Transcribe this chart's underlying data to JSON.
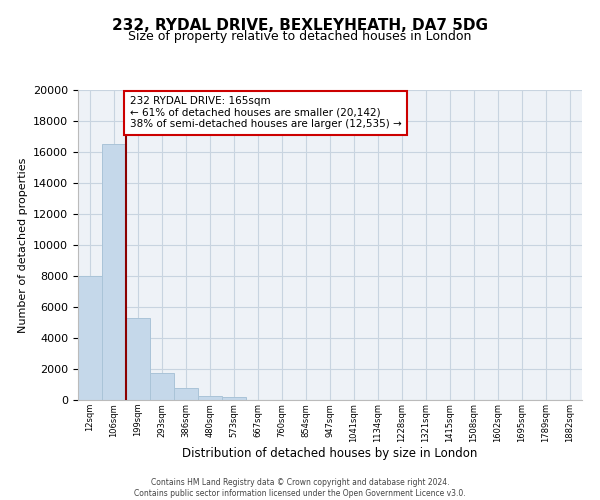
{
  "title": "232, RYDAL DRIVE, BEXLEYHEATH, DA7 5DG",
  "subtitle": "Size of property relative to detached houses in London",
  "xlabel": "Distribution of detached houses by size in London",
  "ylabel": "Number of detached properties",
  "bar_categories": [
    "12sqm",
    "106sqm",
    "199sqm",
    "293sqm",
    "386sqm",
    "480sqm",
    "573sqm",
    "667sqm",
    "760sqm",
    "854sqm",
    "947sqm",
    "1041sqm",
    "1134sqm",
    "1228sqm",
    "1321sqm",
    "1415sqm",
    "1508sqm",
    "1602sqm",
    "1695sqm",
    "1789sqm",
    "1882sqm"
  ],
  "bar_values": [
    8000,
    16500,
    5300,
    1750,
    750,
    280,
    200,
    0,
    0,
    0,
    0,
    0,
    0,
    0,
    0,
    0,
    0,
    0,
    0,
    0,
    0
  ],
  "bar_color": "#c5d8ea",
  "bar_edgecolor": "#aac4d8",
  "property_line_color": "#8b0000",
  "annotation_text": "232 RYDAL DRIVE: 165sqm\n← 61% of detached houses are smaller (20,142)\n38% of semi-detached houses are larger (12,535) →",
  "annotation_box_color": "#ffffff",
  "annotation_box_edgecolor": "#cc0000",
  "ylim": [
    0,
    20000
  ],
  "yticks": [
    0,
    2000,
    4000,
    6000,
    8000,
    10000,
    12000,
    14000,
    16000,
    18000,
    20000
  ],
  "background_color": "#eef2f7",
  "grid_color": "#c8d4e0",
  "footer_line1": "Contains HM Land Registry data © Crown copyright and database right 2024.",
  "footer_line2": "Contains public sector information licensed under the Open Government Licence v3.0."
}
